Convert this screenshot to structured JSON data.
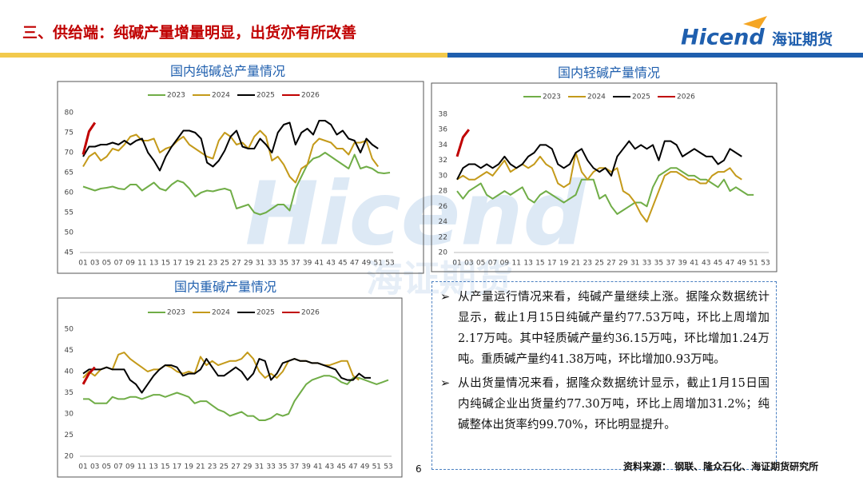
{
  "header": {
    "title": "三、供给端：纯碱产量增量明显，出货亦有所改善",
    "logo_en": "Hicend",
    "logo_cn": "海证期货"
  },
  "watermark": {
    "en": "Hicend",
    "cn": "海证期货"
  },
  "chart_data": [
    {
      "type": "line",
      "title": "国内纯碱总产量情况",
      "categories": [
        "01",
        null,
        "03",
        null,
        "05",
        null,
        "07",
        null,
        "09",
        null,
        "11",
        null,
        "13",
        null,
        "15",
        null,
        "17",
        null,
        "19",
        null,
        "21",
        null,
        "23",
        null,
        "25",
        null,
        "27",
        null,
        "29",
        null,
        "31",
        null,
        "33",
        null,
        "35",
        null,
        "37",
        null,
        "39",
        null,
        "41",
        null,
        "43",
        null,
        "45",
        null,
        "47",
        null,
        "49",
        null,
        "51",
        null,
        "53"
      ],
      "ylim": [
        45,
        80
      ],
      "yticks": [
        45,
        50,
        55,
        60,
        65,
        70,
        75,
        80
      ],
      "grid": false,
      "legend": "top",
      "series": [
        {
          "name": "2023",
          "color": "#70ad47",
          "values": [
            61.5,
            61,
            60.5,
            61,
            61.2,
            61.5,
            61,
            60.8,
            62,
            62,
            60.5,
            61.5,
            62.5,
            61,
            60.5,
            62,
            63,
            62.5,
            61,
            59,
            60,
            60.5,
            60.3,
            60.7,
            61,
            60.5,
            56,
            56.5,
            57,
            55,
            54.5,
            55,
            56,
            57,
            57,
            55.5,
            61,
            64,
            67,
            68.5,
            69,
            70,
            69,
            68,
            67,
            66,
            69.5,
            66,
            66.5,
            66,
            65,
            64.8,
            65
          ]
        },
        {
          "name": "2024",
          "color": "#c49a1a",
          "values": [
            66.5,
            69,
            70,
            68,
            69,
            71,
            70.5,
            72,
            74,
            74.5,
            73,
            73,
            73.5,
            70,
            71,
            71.5,
            73,
            74,
            72,
            71,
            70,
            69,
            68.5,
            73,
            75,
            74,
            72,
            72.5,
            71,
            74,
            75.5,
            74,
            68,
            69,
            67,
            64,
            62.5,
            66,
            67,
            72,
            73.5,
            73,
            72.5,
            71,
            71,
            69.5,
            72.5,
            72.5,
            73,
            68.5,
            66.5,
            null,
            null
          ]
        },
        {
          "name": "2025",
          "color": "#000000",
          "values": [
            69,
            71.5,
            71.5,
            72,
            72,
            72.5,
            72,
            73,
            72,
            73,
            73.5,
            70,
            68,
            65.5,
            69,
            71.5,
            73.5,
            75.5,
            75.5,
            75,
            73.5,
            67.5,
            66.5,
            68,
            70.5,
            74,
            75.5,
            71.5,
            71,
            71,
            73.5,
            72,
            70,
            75,
            77,
            77.5,
            72,
            75,
            76,
            74.5,
            78,
            78,
            77,
            74.5,
            75.5,
            73.5,
            73,
            70,
            73.5,
            72,
            71,
            null,
            null
          ]
        },
        {
          "name": "2026",
          "color": "#c00000",
          "values": [
            69.5,
            75.3,
            77.5,
            null,
            null,
            null,
            null,
            null,
            null,
            null,
            null,
            null,
            null,
            null,
            null,
            null,
            null,
            null,
            null,
            null,
            null,
            null,
            null,
            null,
            null,
            null,
            null,
            null,
            null,
            null,
            null,
            null,
            null,
            null,
            null,
            null,
            null,
            null,
            null,
            null,
            null,
            null,
            null,
            null,
            null,
            null,
            null,
            null,
            null,
            null,
            null,
            null,
            null
          ]
        }
      ]
    },
    {
      "type": "line",
      "title": "国内轻碱产量情况",
      "categories": [
        "01",
        null,
        "03",
        null,
        "05",
        null,
        "07",
        null,
        "09",
        null,
        "11",
        null,
        "13",
        null,
        "15",
        null,
        "17",
        null,
        "19",
        null,
        "21",
        null,
        "23",
        null,
        "25",
        null,
        "27",
        null,
        "29",
        null,
        "31",
        null,
        "33",
        null,
        "35",
        null,
        "37",
        null,
        "39",
        null,
        "41",
        null,
        "43",
        null,
        "45",
        null,
        "47",
        null,
        "49",
        null,
        "51",
        null,
        "53"
      ],
      "ylim": [
        20,
        38
      ],
      "yticks": [
        20,
        22,
        24,
        26,
        28,
        30,
        32,
        34,
        36,
        38
      ],
      "grid": false,
      "legend": "top",
      "series": [
        {
          "name": "2023",
          "color": "#70ad47",
          "values": [
            28,
            27,
            28,
            28.5,
            29,
            27.5,
            27,
            27.5,
            28,
            27.5,
            28,
            28.5,
            27,
            26.5,
            27.5,
            28,
            27.5,
            27,
            26.5,
            27,
            27.5,
            29.5,
            29.5,
            29.5,
            27,
            27.5,
            26,
            25,
            25.5,
            26,
            26.5,
            26.5,
            26,
            28.5,
            30,
            30.5,
            31,
            31,
            30.5,
            30,
            30,
            29.5,
            29.5,
            29,
            28.5,
            29.5,
            28,
            28.5,
            28,
            27.5,
            27.5,
            null,
            null
          ]
        },
        {
          "name": "2024",
          "color": "#c49a1a",
          "values": [
            29.5,
            30,
            29.5,
            29.5,
            30,
            30.5,
            30,
            31,
            32,
            30.5,
            31,
            31.5,
            31,
            31.5,
            32.5,
            31.5,
            31,
            29,
            28.5,
            29,
            33,
            30.5,
            29.5,
            30.5,
            31,
            31,
            30.5,
            31,
            28,
            27.5,
            26.5,
            25,
            24,
            26,
            28,
            30,
            30.5,
            30.5,
            30,
            29.5,
            29.5,
            29,
            29,
            30,
            30.5,
            30.5,
            31,
            30,
            29.5,
            null,
            null,
            null,
            null
          ]
        },
        {
          "name": "2025",
          "color": "#000000",
          "values": [
            29.5,
            31,
            31.5,
            31.5,
            31,
            31.5,
            31,
            31.5,
            32.5,
            31.5,
            31,
            31.5,
            32.5,
            33,
            34,
            34,
            33.5,
            31.5,
            31,
            31.5,
            33,
            33.5,
            32,
            31,
            30.5,
            31,
            30,
            32.5,
            33.5,
            34.5,
            33.5,
            34,
            33.5,
            34,
            32,
            34.5,
            34.5,
            34,
            32.5,
            33,
            33.5,
            33,
            32.5,
            32.5,
            31.5,
            32,
            33.5,
            33,
            32.5,
            null,
            null,
            null,
            null
          ]
        },
        {
          "name": "2026",
          "color": "#c00000",
          "values": [
            32.5,
            35,
            36,
            null,
            null,
            null,
            null,
            null,
            null,
            null,
            null,
            null,
            null,
            null,
            null,
            null,
            null,
            null,
            null,
            null,
            null,
            null,
            null,
            null,
            null,
            null,
            null,
            null,
            null,
            null,
            null,
            null,
            null,
            null,
            null,
            null,
            null,
            null,
            null,
            null,
            null,
            null,
            null,
            null,
            null,
            null,
            null,
            null,
            null,
            null,
            null,
            null,
            null
          ]
        }
      ]
    },
    {
      "type": "line",
      "title": "国内重碱产量情况",
      "categories": [
        "01",
        null,
        "03",
        null,
        "05",
        null,
        "07",
        null,
        "09",
        null,
        "11",
        null,
        "13",
        null,
        "15",
        null,
        "17",
        null,
        "19",
        null,
        "21",
        null,
        "23",
        null,
        "25",
        null,
        "27",
        null,
        "29",
        null,
        "31",
        null,
        "33",
        null,
        "35",
        null,
        "37",
        null,
        "39",
        null,
        "41",
        null,
        "43",
        null,
        "45",
        null,
        "47",
        null,
        "49",
        null,
        "51",
        null,
        "53"
      ],
      "ylim": [
        20,
        50
      ],
      "yticks": [
        20,
        25,
        30,
        35,
        40,
        45,
        50
      ],
      "grid": false,
      "legend": "top",
      "series": [
        {
          "name": "2023",
          "color": "#70ad47",
          "values": [
            33.5,
            33.5,
            32.5,
            32.5,
            32.5,
            34,
            33.5,
            33.5,
            34,
            34,
            33.5,
            34,
            34.5,
            34.5,
            34,
            34.5,
            35,
            34.5,
            34,
            32.5,
            33,
            33,
            32,
            31,
            30.5,
            29.5,
            30,
            30.5,
            29.5,
            29.5,
            28.5,
            28.5,
            29,
            30,
            29.5,
            30,
            33,
            35,
            37,
            38,
            38.5,
            39,
            39,
            38.5,
            37.5,
            37,
            38.5,
            38.5,
            38,
            37.5,
            37,
            37.5,
            38
          ]
        },
        {
          "name": "2024",
          "color": "#c49a1a",
          "values": [
            38.5,
            40,
            39,
            40.5,
            41,
            40.5,
            44,
            44.5,
            43,
            42,
            41,
            40,
            40.5,
            40.5,
            41.5,
            41,
            40,
            39.5,
            40,
            39.5,
            43.5,
            41.5,
            42.5,
            41.5,
            42,
            42.5,
            42.5,
            43,
            44.5,
            43,
            40,
            38.5,
            39.5,
            38.5,
            40,
            42.5,
            43,
            42.5,
            42.5,
            42,
            42,
            41.5,
            41.5,
            42,
            42.5,
            42.5,
            39,
            38,
            null,
            null,
            null,
            null,
            null
          ]
        },
        {
          "name": "2025",
          "color": "#000000",
          "values": [
            39.5,
            40.5,
            40.5,
            40.5,
            41,
            40.5,
            40.5,
            40.5,
            38,
            37,
            35,
            37,
            39,
            40.5,
            41.5,
            41.5,
            41,
            39,
            39.5,
            39.5,
            40.5,
            43,
            41,
            39,
            39,
            40,
            41,
            40,
            38,
            39.5,
            43,
            42.5,
            38,
            39.5,
            42,
            42.5,
            43,
            42.5,
            42.5,
            42,
            42,
            41.5,
            41,
            40.5,
            38.5,
            38,
            38,
            39.5,
            38.5,
            38.5,
            null,
            null,
            null
          ]
        },
        {
          "name": "2026",
          "color": "#c00000",
          "values": [
            37,
            39.5,
            41,
            null,
            null,
            null,
            null,
            null,
            null,
            null,
            null,
            null,
            null,
            null,
            null,
            null,
            null,
            null,
            null,
            null,
            null,
            null,
            null,
            null,
            null,
            null,
            null,
            null,
            null,
            null,
            null,
            null,
            null,
            null,
            null,
            null,
            null,
            null,
            null,
            null,
            null,
            null,
            null,
            null,
            null,
            null,
            null,
            null,
            null,
            null,
            null,
            null,
            null
          ]
        }
      ]
    }
  ],
  "bullets": [
    "从产量运行情况来看，纯碱产量继续上涨。据隆众数据统计显示，截止1月15日纯碱产量约77.53万吨，环比上周增加2.17万吨。其中轻质碱产量约36.15万吨，环比增加1.24万吨。重质碱产量约41.38万吨，环比增加0.93万吨。",
    "从出货量情况来看，据隆众数据统计显示，截止1月15日国内纯碱企业出货量约77.30万吨，环比上周增加31.2%；纯碱整体出货率约99.70%，环比明显提升。"
  ],
  "page_number": "6",
  "source": "资料来源：  钢联、隆众石化、海证期货研究所"
}
